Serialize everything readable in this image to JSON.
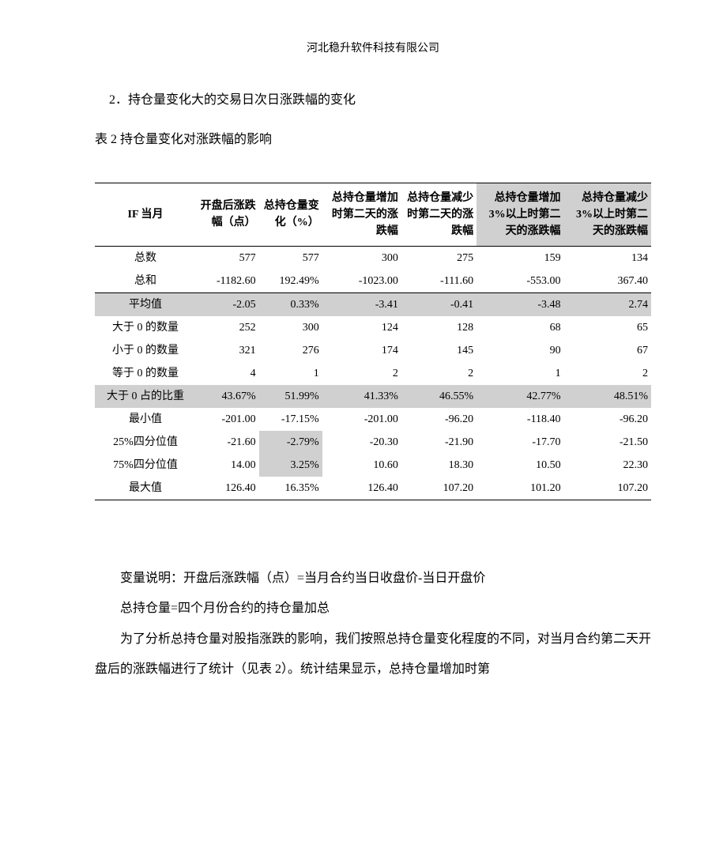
{
  "header": {
    "company": "河北稳升软件科技有限公司"
  },
  "section": {
    "title": "2．持仓量变化大的交易日次日涨跌幅的变化",
    "caption": "表 2 持仓量变化对涨跌幅的影响"
  },
  "table": {
    "columns": [
      "IF 当月",
      "开盘后涨跌幅（点）",
      "总持仓量变化（%）",
      "总持仓量增加时第二天的涨跌幅",
      "总持仓量减少时第二天的涨跌幅",
      "总持仓量增加 3%以上时第二天的涨跌幅",
      "总持仓量减少 3%以上时第二天的涨跌幅"
    ],
    "rows": [
      {
        "label": "总数",
        "cells": [
          "577",
          "577",
          "300",
          "275",
          "159",
          "134"
        ],
        "shade": false,
        "shadeCells": []
      },
      {
        "label": "总和",
        "cells": [
          "-1182.60",
          "192.49%",
          "-1023.00",
          "-111.60",
          "-553.00",
          "367.40"
        ],
        "shade": false,
        "shadeCells": [],
        "bottomBorder": true
      },
      {
        "label": "平均值",
        "cells": [
          "-2.05",
          "0.33%",
          "-3.41",
          "-0.41",
          "-3.48",
          "2.74"
        ],
        "shade": true,
        "shadeCells": []
      },
      {
        "label": "大于 0 的数量",
        "cells": [
          "252",
          "300",
          "124",
          "128",
          "68",
          "65"
        ],
        "shade": false,
        "shadeCells": []
      },
      {
        "label": "小于 0 的数量",
        "cells": [
          "321",
          "276",
          "174",
          "145",
          "90",
          "67"
        ],
        "shade": false,
        "shadeCells": []
      },
      {
        "label": "等于 0 的数量",
        "cells": [
          "4",
          "1",
          "2",
          "2",
          "1",
          "2"
        ],
        "shade": false,
        "shadeCells": []
      },
      {
        "label": "大于 0 占的比重",
        "cells": [
          "43.67%",
          "51.99%",
          "41.33%",
          "46.55%",
          "42.77%",
          "48.51%"
        ],
        "shade": true,
        "shadeCells": []
      },
      {
        "label": "最小值",
        "cells": [
          "-201.00",
          "-17.15%",
          "-201.00",
          "-96.20",
          "-118.40",
          "-96.20"
        ],
        "shade": false,
        "shadeCells": []
      },
      {
        "label": "25%四分位值",
        "cells": [
          "-21.60",
          "-2.79%",
          "-20.30",
          "-21.90",
          "-17.70",
          "-21.50"
        ],
        "shade": false,
        "shadeCells": [
          2
        ]
      },
      {
        "label": "75%四分位值",
        "cells": [
          "14.00",
          "3.25%",
          "10.60",
          "18.30",
          "10.50",
          "22.30"
        ],
        "shade": false,
        "shadeCells": [
          2
        ]
      },
      {
        "label": "最大值",
        "cells": [
          "126.40",
          "16.35%",
          "126.40",
          "107.20",
          "101.20",
          "107.20"
        ],
        "shade": false,
        "shadeCells": [],
        "bottomBorder": true
      }
    ],
    "header_shaded_cols": [
      5,
      6
    ],
    "col_widths": [
      "120px",
      "90px",
      "78px",
      "100px",
      "100px",
      "100px",
      "100px"
    ]
  },
  "body": {
    "p1": "变量说明：开盘后涨跌幅（点）=当月合约当日收盘价-当日开盘价",
    "p2": "总持仓量=四个月份合约的持仓量加总",
    "p3": "为了分析总持仓量对股指涨跌的影响，我们按照总持仓量变化程度的不同，对当月合约第二天开盘后的涨跌幅进行了统计（见表 2）。统计结果显示，总持仓量增加时第"
  },
  "style": {
    "shade_color": "#d0d0d0",
    "text_color": "#000000",
    "bg_color": "#ffffff"
  }
}
